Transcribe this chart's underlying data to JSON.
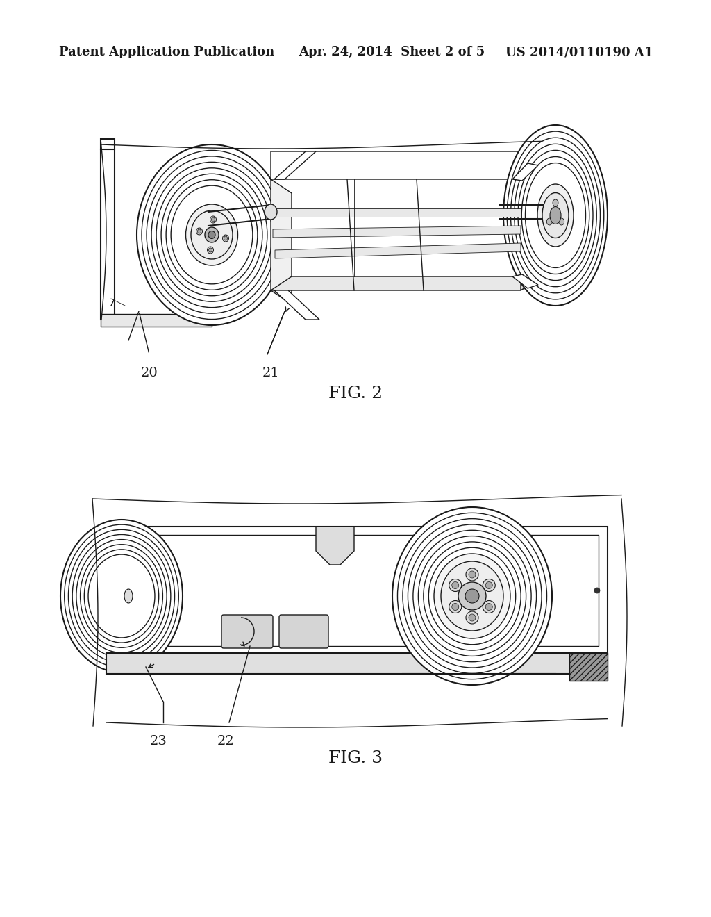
{
  "background_color": "#ffffff",
  "header_left": "Patent Application Publication",
  "header_center": "Apr. 24, 2014  Sheet 2 of 5",
  "header_right": "US 2014/0110190 A1",
  "header_fontsize": 13,
  "fig2_label": "FIG. 2",
  "fig3_label": "FIG. 3",
  "label_fontsize": 14,
  "ref_fontsize": 14,
  "line_color": "#1a1a1a"
}
